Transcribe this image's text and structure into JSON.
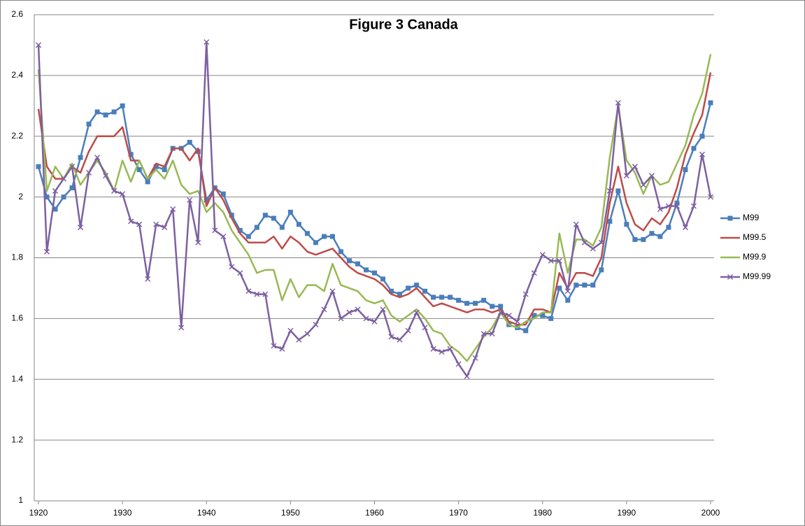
{
  "chart_data": {
    "type": "line",
    "title": "Figure 3 Canada",
    "x": [
      1920,
      1921,
      1922,
      1923,
      1924,
      1925,
      1926,
      1927,
      1928,
      1929,
      1930,
      1931,
      1932,
      1933,
      1934,
      1935,
      1936,
      1937,
      1938,
      1939,
      1940,
      1941,
      1942,
      1943,
      1944,
      1945,
      1946,
      1947,
      1948,
      1949,
      1950,
      1951,
      1952,
      1953,
      1954,
      1955,
      1956,
      1957,
      1958,
      1959,
      1960,
      1961,
      1962,
      1963,
      1964,
      1965,
      1966,
      1967,
      1968,
      1969,
      1970,
      1971,
      1972,
      1973,
      1974,
      1975,
      1976,
      1977,
      1978,
      1979,
      1980,
      1981,
      1982,
      1983,
      1984,
      1985,
      1986,
      1987,
      1988,
      1989,
      1990,
      1991,
      1992,
      1993,
      1994,
      1995,
      1996,
      1997,
      1998,
      1999,
      2000
    ],
    "series": [
      {
        "name": "M99",
        "color": "#4a7ebb",
        "marker": "square",
        "values": [
          2.1,
          2.0,
          1.96,
          2.0,
          2.03,
          2.13,
          2.24,
          2.28,
          2.27,
          2.28,
          2.3,
          2.14,
          2.09,
          2.05,
          2.1,
          2.09,
          2.16,
          2.16,
          2.18,
          2.15,
          1.99,
          2.03,
          2.01,
          1.94,
          1.89,
          1.87,
          1.9,
          1.94,
          1.93,
          1.9,
          1.95,
          1.91,
          1.88,
          1.85,
          1.87,
          1.87,
          1.82,
          1.79,
          1.78,
          1.76,
          1.75,
          1.73,
          1.69,
          1.68,
          1.7,
          1.71,
          1.69,
          1.67,
          1.67,
          1.67,
          1.66,
          1.65,
          1.65,
          1.66,
          1.64,
          1.64,
          1.58,
          1.57,
          1.56,
          1.61,
          1.61,
          1.6,
          1.7,
          1.66,
          1.71,
          1.71,
          1.71,
          1.76,
          1.92,
          2.02,
          1.91,
          1.86,
          1.86,
          1.88,
          1.87,
          1.9,
          1.98,
          2.09,
          2.16,
          2.2,
          2.31
        ]
      },
      {
        "name": "M99.5",
        "color": "#be4b48",
        "values": [
          2.29,
          2.1,
          2.06,
          2.06,
          2.1,
          2.08,
          2.15,
          2.2,
          2.2,
          2.2,
          2.23,
          2.12,
          2.12,
          2.06,
          2.11,
          2.1,
          2.16,
          2.16,
          2.12,
          2.16,
          1.97,
          2.03,
          1.99,
          1.93,
          1.88,
          1.85,
          1.85,
          1.85,
          1.87,
          1.83,
          1.87,
          1.85,
          1.82,
          1.81,
          1.82,
          1.83,
          1.8,
          1.77,
          1.75,
          1.74,
          1.73,
          1.71,
          1.68,
          1.67,
          1.68,
          1.7,
          1.67,
          1.64,
          1.65,
          1.64,
          1.63,
          1.62,
          1.63,
          1.63,
          1.62,
          1.63,
          1.59,
          1.58,
          1.58,
          1.63,
          1.63,
          1.62,
          1.75,
          1.7,
          1.75,
          1.75,
          1.74,
          1.8,
          1.98,
          2.1,
          1.98,
          1.91,
          1.89,
          1.93,
          1.91,
          1.95,
          2.03,
          2.14,
          2.21,
          2.27,
          2.41
        ]
      },
      {
        "name": "M99.9",
        "color": "#98b954",
        "values": [
          2.42,
          2.02,
          2.1,
          2.06,
          2.11,
          2.04,
          2.08,
          2.12,
          2.08,
          2.02,
          2.12,
          2.05,
          2.12,
          2.06,
          2.09,
          2.06,
          2.12,
          2.04,
          2.01,
          2.02,
          1.95,
          1.98,
          1.95,
          1.89,
          1.85,
          1.81,
          1.75,
          1.76,
          1.76,
          1.66,
          1.73,
          1.67,
          1.71,
          1.71,
          1.69,
          1.78,
          1.71,
          1.7,
          1.69,
          1.66,
          1.65,
          1.66,
          1.61,
          1.59,
          1.61,
          1.63,
          1.6,
          1.56,
          1.55,
          1.51,
          1.49,
          1.46,
          1.5,
          1.54,
          1.57,
          1.62,
          1.58,
          1.57,
          1.59,
          1.6,
          1.62,
          1.62,
          1.88,
          1.75,
          1.86,
          1.86,
          1.84,
          1.9,
          2.13,
          2.3,
          2.12,
          2.08,
          2.01,
          2.07,
          2.04,
          2.05,
          2.11,
          2.17,
          2.27,
          2.34,
          2.47
        ]
      },
      {
        "name": "M99.99",
        "color": "#7d60a0",
        "marker": "x",
        "values": [
          2.5,
          1.82,
          2.02,
          2.06,
          2.1,
          1.9,
          2.08,
          2.13,
          2.07,
          2.02,
          2.01,
          1.92,
          1.91,
          1.73,
          1.91,
          1.9,
          1.96,
          1.57,
          1.99,
          1.85,
          2.51,
          1.89,
          1.87,
          1.77,
          1.75,
          1.69,
          1.68,
          1.68,
          1.51,
          1.5,
          1.56,
          1.53,
          1.55,
          1.58,
          1.63,
          1.69,
          1.6,
          1.62,
          1.63,
          1.6,
          1.59,
          1.63,
          1.54,
          1.53,
          1.56,
          1.62,
          1.57,
          1.5,
          1.49,
          1.5,
          1.45,
          1.41,
          1.47,
          1.55,
          1.55,
          1.62,
          1.61,
          1.59,
          1.68,
          1.75,
          1.81,
          1.79,
          1.79,
          1.69,
          1.91,
          1.85,
          1.83,
          1.85,
          2.02,
          2.31,
          2.07,
          2.1,
          2.04,
          2.07,
          1.96,
          1.97,
          1.97,
          1.9,
          1.97,
          2.14,
          2.0
        ]
      }
    ],
    "xlim": [
      1920,
      2000
    ],
    "xticks": [
      1920,
      1930,
      1940,
      1950,
      1960,
      1970,
      1980,
      1990,
      2000
    ],
    "ylim": [
      1,
      2.6
    ],
    "yticks": [
      1,
      1.2,
      1.4,
      1.6,
      1.8,
      2,
      2.2,
      2.4,
      2.6
    ],
    "grid": true,
    "legend": "right"
  }
}
